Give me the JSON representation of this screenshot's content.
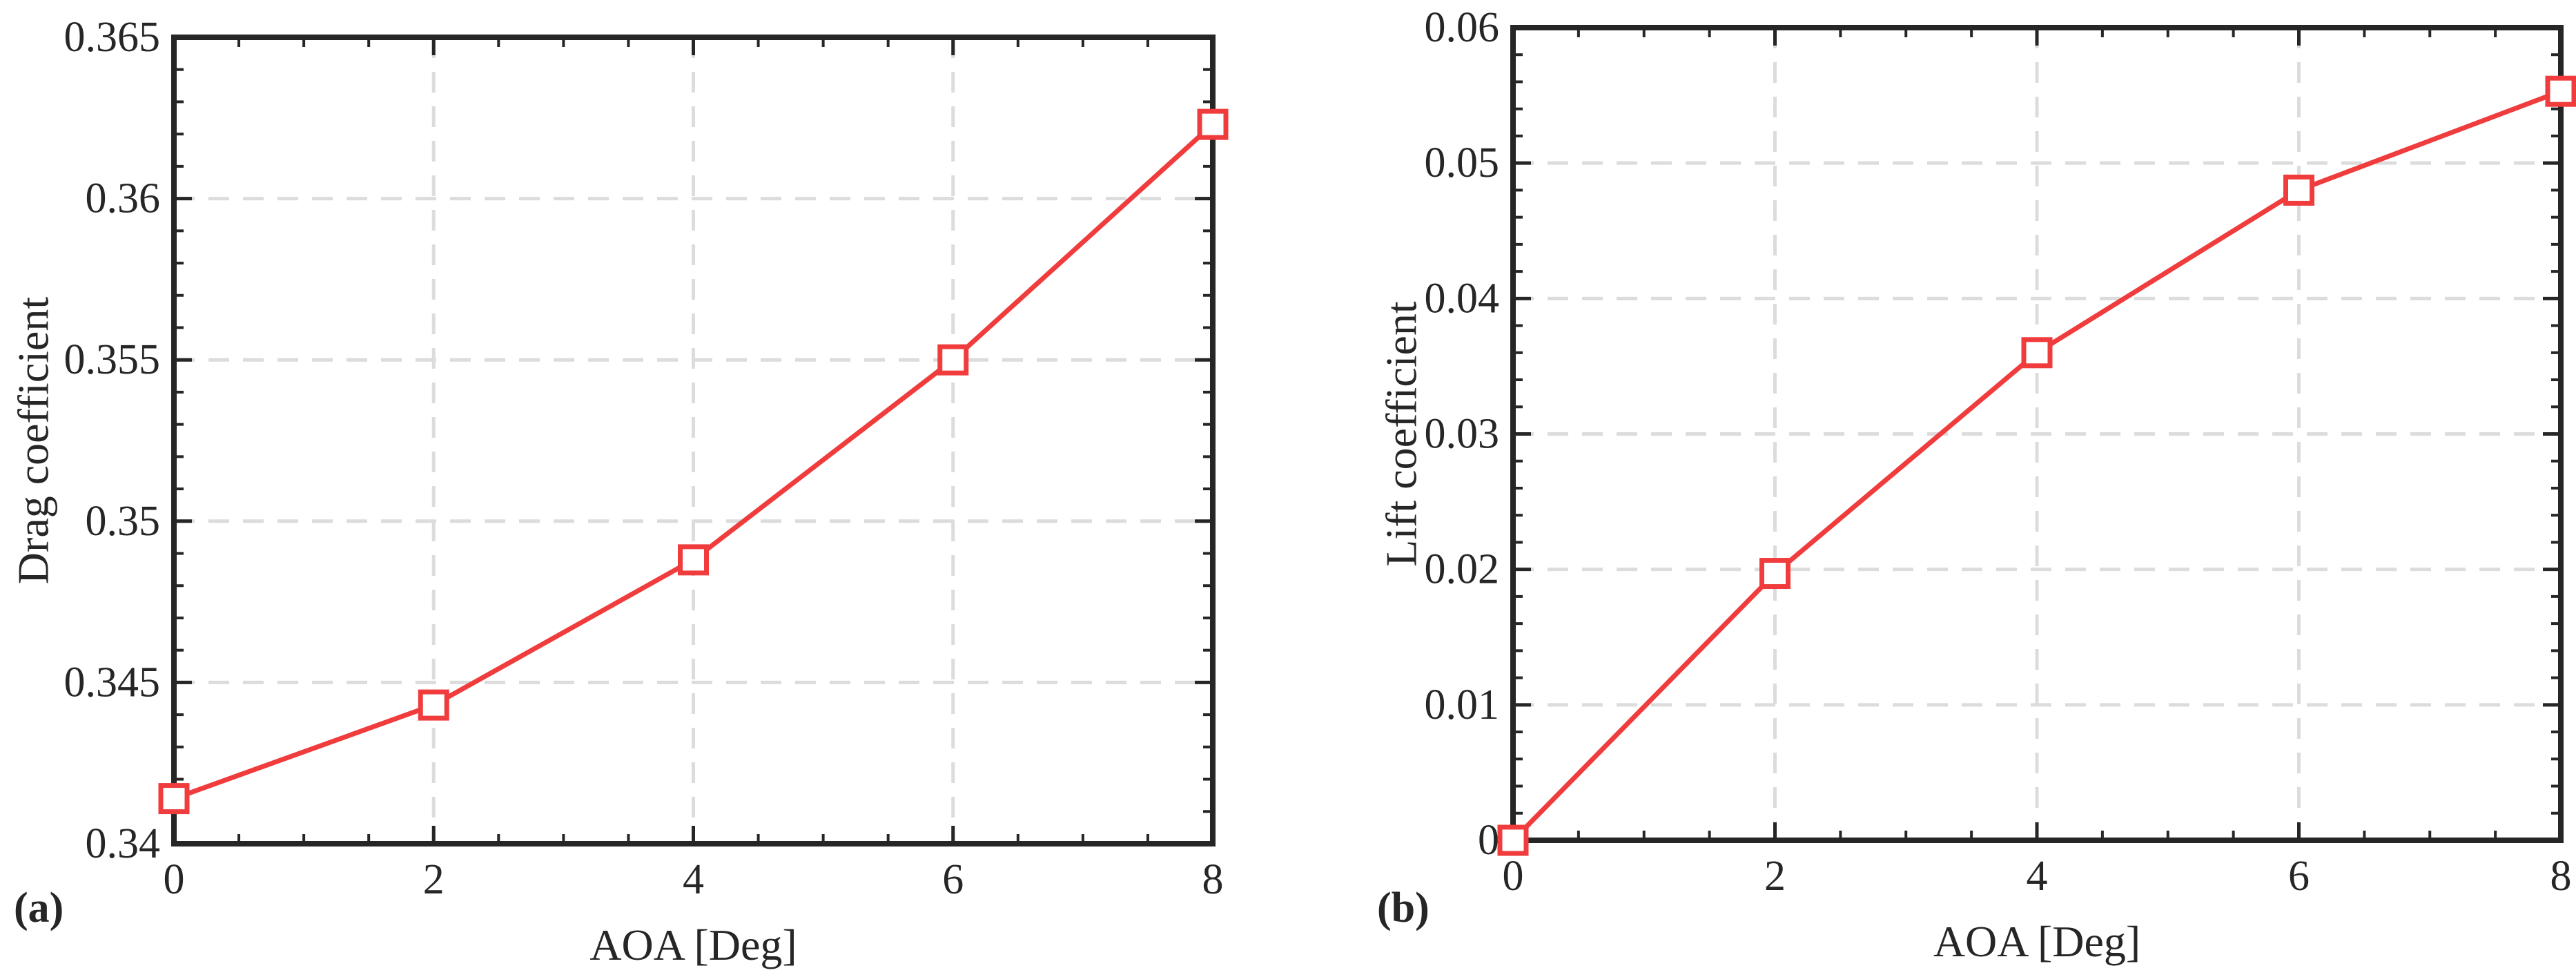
{
  "chart_data": [
    {
      "type": "line",
      "panel_label": "(a)",
      "xlabel": "AOA [Deg]",
      "ylabel": "Drag coefficient",
      "x": [
        0,
        2,
        4,
        6,
        8
      ],
      "series": [
        {
          "values": [
            0.3414,
            0.3443,
            0.3488,
            0.355,
            0.3623
          ],
          "color": "#f03c3c",
          "marker": "square"
        }
      ],
      "xlim": [
        0,
        8
      ],
      "ylim": [
        0.34,
        0.365
      ],
      "xticks": [
        0,
        2,
        4,
        6,
        8
      ],
      "xtick_labels": [
        "0",
        "2",
        "4",
        "6",
        "8"
      ],
      "yticks": [
        0.34,
        0.345,
        0.35,
        0.355,
        0.36,
        0.365
      ],
      "ytick_labels": [
        "0.34",
        "0.345",
        "0.35",
        "0.355",
        "0.36",
        "0.365"
      ],
      "grid": true
    },
    {
      "type": "line",
      "panel_label": "(b)",
      "xlabel": "AOA [Deg]",
      "ylabel": "Lift coefficient",
      "x": [
        0,
        2,
        4,
        6,
        8
      ],
      "series": [
        {
          "values": [
            0.0,
            0.0197,
            0.036,
            0.048,
            0.0553
          ],
          "color": "#f03c3c",
          "marker": "square"
        }
      ],
      "xlim": [
        0,
        8
      ],
      "ylim": [
        0,
        0.06
      ],
      "xticks": [
        0,
        2,
        4,
        6,
        8
      ],
      "xtick_labels": [
        "0",
        "2",
        "4",
        "6",
        "8"
      ],
      "yticks": [
        0,
        0.01,
        0.02,
        0.03,
        0.04,
        0.05,
        0.06
      ],
      "ytick_labels": [
        "0",
        "0.01",
        "0.02",
        "0.03",
        "0.04",
        "0.05",
        "0.06"
      ],
      "grid": true
    }
  ]
}
